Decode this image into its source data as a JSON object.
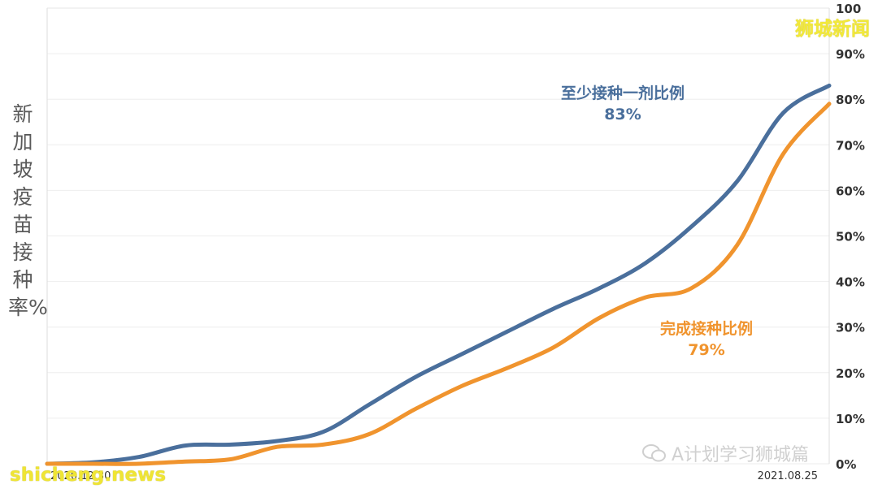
{
  "chart_data": {
    "type": "line",
    "ylabel": "新加坡疫苗接种率%",
    "y_axis_position": "right",
    "ylim": [
      0,
      100
    ],
    "yticks": [
      "100",
      "90%",
      "80%",
      "70%",
      "60%",
      "50%",
      "40%",
      "30%",
      "20%",
      "10%",
      "0%"
    ],
    "x_tick_labels": [
      "2020.12.30",
      "2021.08.25"
    ],
    "grid": true,
    "series": [
      {
        "name": "至少接种一剂比例",
        "end_label": "83%",
        "color": "#4a6f9c",
        "x": [
          "2020.12.30",
          "2021.01.13",
          "2021.01.27",
          "2021.02.10",
          "2021.02.24",
          "2021.03.10",
          "2021.03.24",
          "2021.04.07",
          "2021.04.21",
          "2021.05.05",
          "2021.05.19",
          "2021.06.02",
          "2021.06.16",
          "2021.06.30",
          "2021.07.14",
          "2021.07.28",
          "2021.08.11",
          "2021.08.25"
        ],
        "values": [
          0,
          0.3,
          1.5,
          4,
          4.2,
          5,
          7,
          13,
          19,
          24,
          29,
          34,
          38.5,
          44,
          52,
          62,
          77,
          83
        ]
      },
      {
        "name": "完成接种比例",
        "end_label": "79%",
        "color": "#f0942e",
        "x": [
          "2020.12.30",
          "2021.01.13",
          "2021.01.27",
          "2021.02.10",
          "2021.02.24",
          "2021.03.10",
          "2021.03.24",
          "2021.04.07",
          "2021.04.21",
          "2021.05.05",
          "2021.05.19",
          "2021.06.02",
          "2021.06.16",
          "2021.06.30",
          "2021.07.14",
          "2021.07.28",
          "2021.08.11",
          "2021.08.25"
        ],
        "values": [
          0,
          0,
          0,
          0.5,
          1,
          3.7,
          4.2,
          6.5,
          12,
          17,
          21,
          25.5,
          32,
          36.5,
          38.5,
          48,
          68,
          79
        ]
      }
    ]
  },
  "labels": {
    "series1_name": "至少接种一剂比例",
    "series1_pct": "83%",
    "series2_name": "完成接种比例",
    "series2_pct": "79%",
    "brand": "狮城新闻",
    "watermark_cn": "A计划学习狮城篇",
    "watermark_en": "shicheng.news"
  },
  "colors": {
    "series1": "#4a6f9c",
    "series2": "#f0942e",
    "axis_text": "#333333",
    "grid": "#eeeeee",
    "brand": "#f2e93a"
  }
}
